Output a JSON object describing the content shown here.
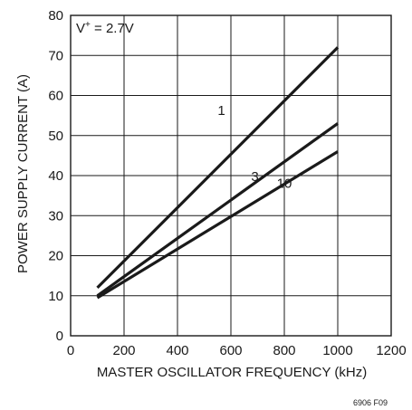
{
  "chart_data": {
    "type": "line",
    "xlabel": "MASTER OSCILLATOR FREQUENCY (kHz)",
    "ylabel": "POWER SUPPLY CURRENT (A)",
    "xlim": [
      0,
      1200
    ],
    "ylim": [
      0,
      80
    ],
    "xticks": [
      "0",
      "200",
      "400",
      "600",
      "800",
      "1000",
      "1200"
    ],
    "yticks": [
      "0",
      "10",
      "20",
      "30",
      "40",
      "50",
      "60",
      "70",
      "80"
    ],
    "grid": true,
    "annotation": {
      "prefix": "V",
      "superscript": "+",
      "suffix": " = 2.7V"
    },
    "footnote": "6906 F09",
    "series": [
      {
        "name": "1",
        "x": [
          100,
          1000
        ],
        "y": [
          12,
          72
        ]
      },
      {
        "name": "3",
        "x": [
          100,
          1000
        ],
        "y": [
          10,
          53
        ]
      },
      {
        "name": "10",
        "x": [
          100,
          1000
        ],
        "y": [
          9.5,
          46
        ]
      }
    ],
    "colors": {
      "line": "#1a1a1a",
      "grid": "#1a1a1a"
    }
  }
}
